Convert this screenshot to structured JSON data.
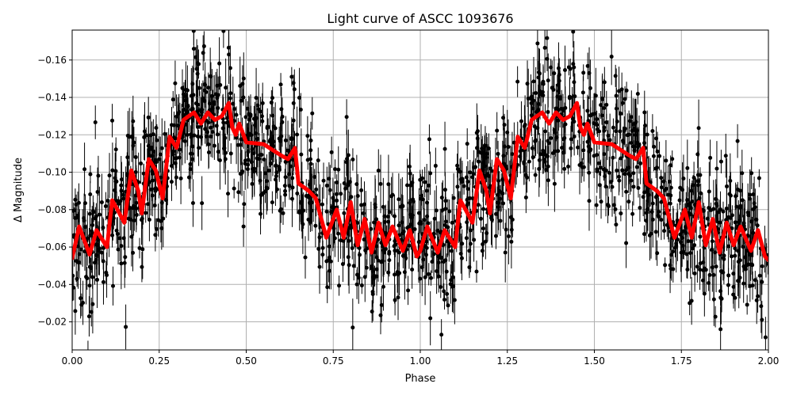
{
  "chart_data": {
    "type": "scatter",
    "title": "Light curve of ASCC 1093676",
    "xlabel": "Phase",
    "ylabel": "Δ Magnitude",
    "xlim": [
      0,
      2
    ],
    "ylim": [
      -0.005,
      -0.176
    ],
    "y_inverted": true,
    "grid": true,
    "x_ticks": [
      "0.00",
      "0.25",
      "0.50",
      "0.75",
      "1.00",
      "1.25",
      "1.50",
      "1.75",
      "2.00"
    ],
    "x_tick_values": [
      0,
      0.25,
      0.5,
      0.75,
      1,
      1.25,
      1.5,
      1.75,
      2
    ],
    "y_ticks": [
      "−0.16",
      "−0.14",
      "−0.12",
      "−0.10",
      "−0.08",
      "−0.06",
      "−0.04",
      "−0.02"
    ],
    "y_tick_values": [
      -0.16,
      -0.14,
      -0.12,
      -0.1,
      -0.08,
      -0.06,
      -0.04,
      -0.02
    ],
    "colors": {
      "data_points": "#000000",
      "model_curve": "#ff0000",
      "grid": "#b0b0b0"
    },
    "series": [
      {
        "kind": "errorbar-scatter",
        "color": "#000000"
      },
      {
        "kind": "line",
        "color": "#ff0000",
        "x": [
          0,
          0.02,
          0.05,
          0.07,
          0.09,
          0.1,
          0.115,
          0.13,
          0.15,
          0.17,
          0.19,
          0.2,
          0.22,
          0.24,
          0.26,
          0.28,
          0.3,
          0.32,
          0.35,
          0.37,
          0.39,
          0.41,
          0.43,
          0.45,
          0.46,
          0.47,
          0.48,
          0.5,
          0.55,
          0.6,
          0.62,
          0.64,
          0.65,
          0.68,
          0.7,
          0.73,
          0.76,
          0.78,
          0.8,
          0.82,
          0.84,
          0.86,
          0.88,
          0.9,
          0.92,
          0.95,
          0.97,
          0.99,
          1.0,
          1.02,
          1.05,
          1.07,
          1.1,
          1.115,
          1.13,
          1.15,
          1.17,
          1.19,
          1.2,
          1.22,
          1.24,
          1.26,
          1.28,
          1.3,
          1.32,
          1.35,
          1.37,
          1.39,
          1.41,
          1.43,
          1.45,
          1.46,
          1.47,
          1.48,
          1.5,
          1.55,
          1.6,
          1.62,
          1.64,
          1.65,
          1.68,
          1.7,
          1.73,
          1.76,
          1.78,
          1.8,
          1.82,
          1.84,
          1.86,
          1.88,
          1.9,
          1.92,
          1.95,
          1.97,
          1.99,
          2.0
        ],
        "y": [
          -0.054,
          -0.071,
          -0.056,
          -0.069,
          -0.063,
          -0.06,
          -0.085,
          -0.08,
          -0.073,
          -0.101,
          -0.09,
          -0.078,
          -0.107,
          -0.101,
          -0.086,
          -0.119,
          -0.113,
          -0.128,
          -0.132,
          -0.126,
          -0.132,
          -0.128,
          -0.13,
          -0.137,
          -0.124,
          -0.12,
          -0.126,
          -0.116,
          -0.115,
          -0.109,
          -0.107,
          -0.113,
          -0.094,
          -0.09,
          -0.086,
          -0.065,
          -0.08,
          -0.065,
          -0.084,
          -0.061,
          -0.075,
          -0.057,
          -0.073,
          -0.061,
          -0.071,
          -0.058,
          -0.069,
          -0.055,
          -0.058,
          -0.071,
          -0.057,
          -0.069,
          -0.06,
          -0.085,
          -0.08,
          -0.073,
          -0.101,
          -0.09,
          -0.078,
          -0.107,
          -0.101,
          -0.086,
          -0.119,
          -0.113,
          -0.128,
          -0.132,
          -0.126,
          -0.132,
          -0.128,
          -0.13,
          -0.137,
          -0.124,
          -0.12,
          -0.126,
          -0.116,
          -0.115,
          -0.109,
          -0.107,
          -0.113,
          -0.094,
          -0.09,
          -0.086,
          -0.065,
          -0.08,
          -0.065,
          -0.084,
          -0.061,
          -0.075,
          -0.057,
          -0.073,
          -0.061,
          -0.071,
          -0.058,
          -0.069,
          -0.055,
          -0.053
        ]
      }
    ]
  }
}
